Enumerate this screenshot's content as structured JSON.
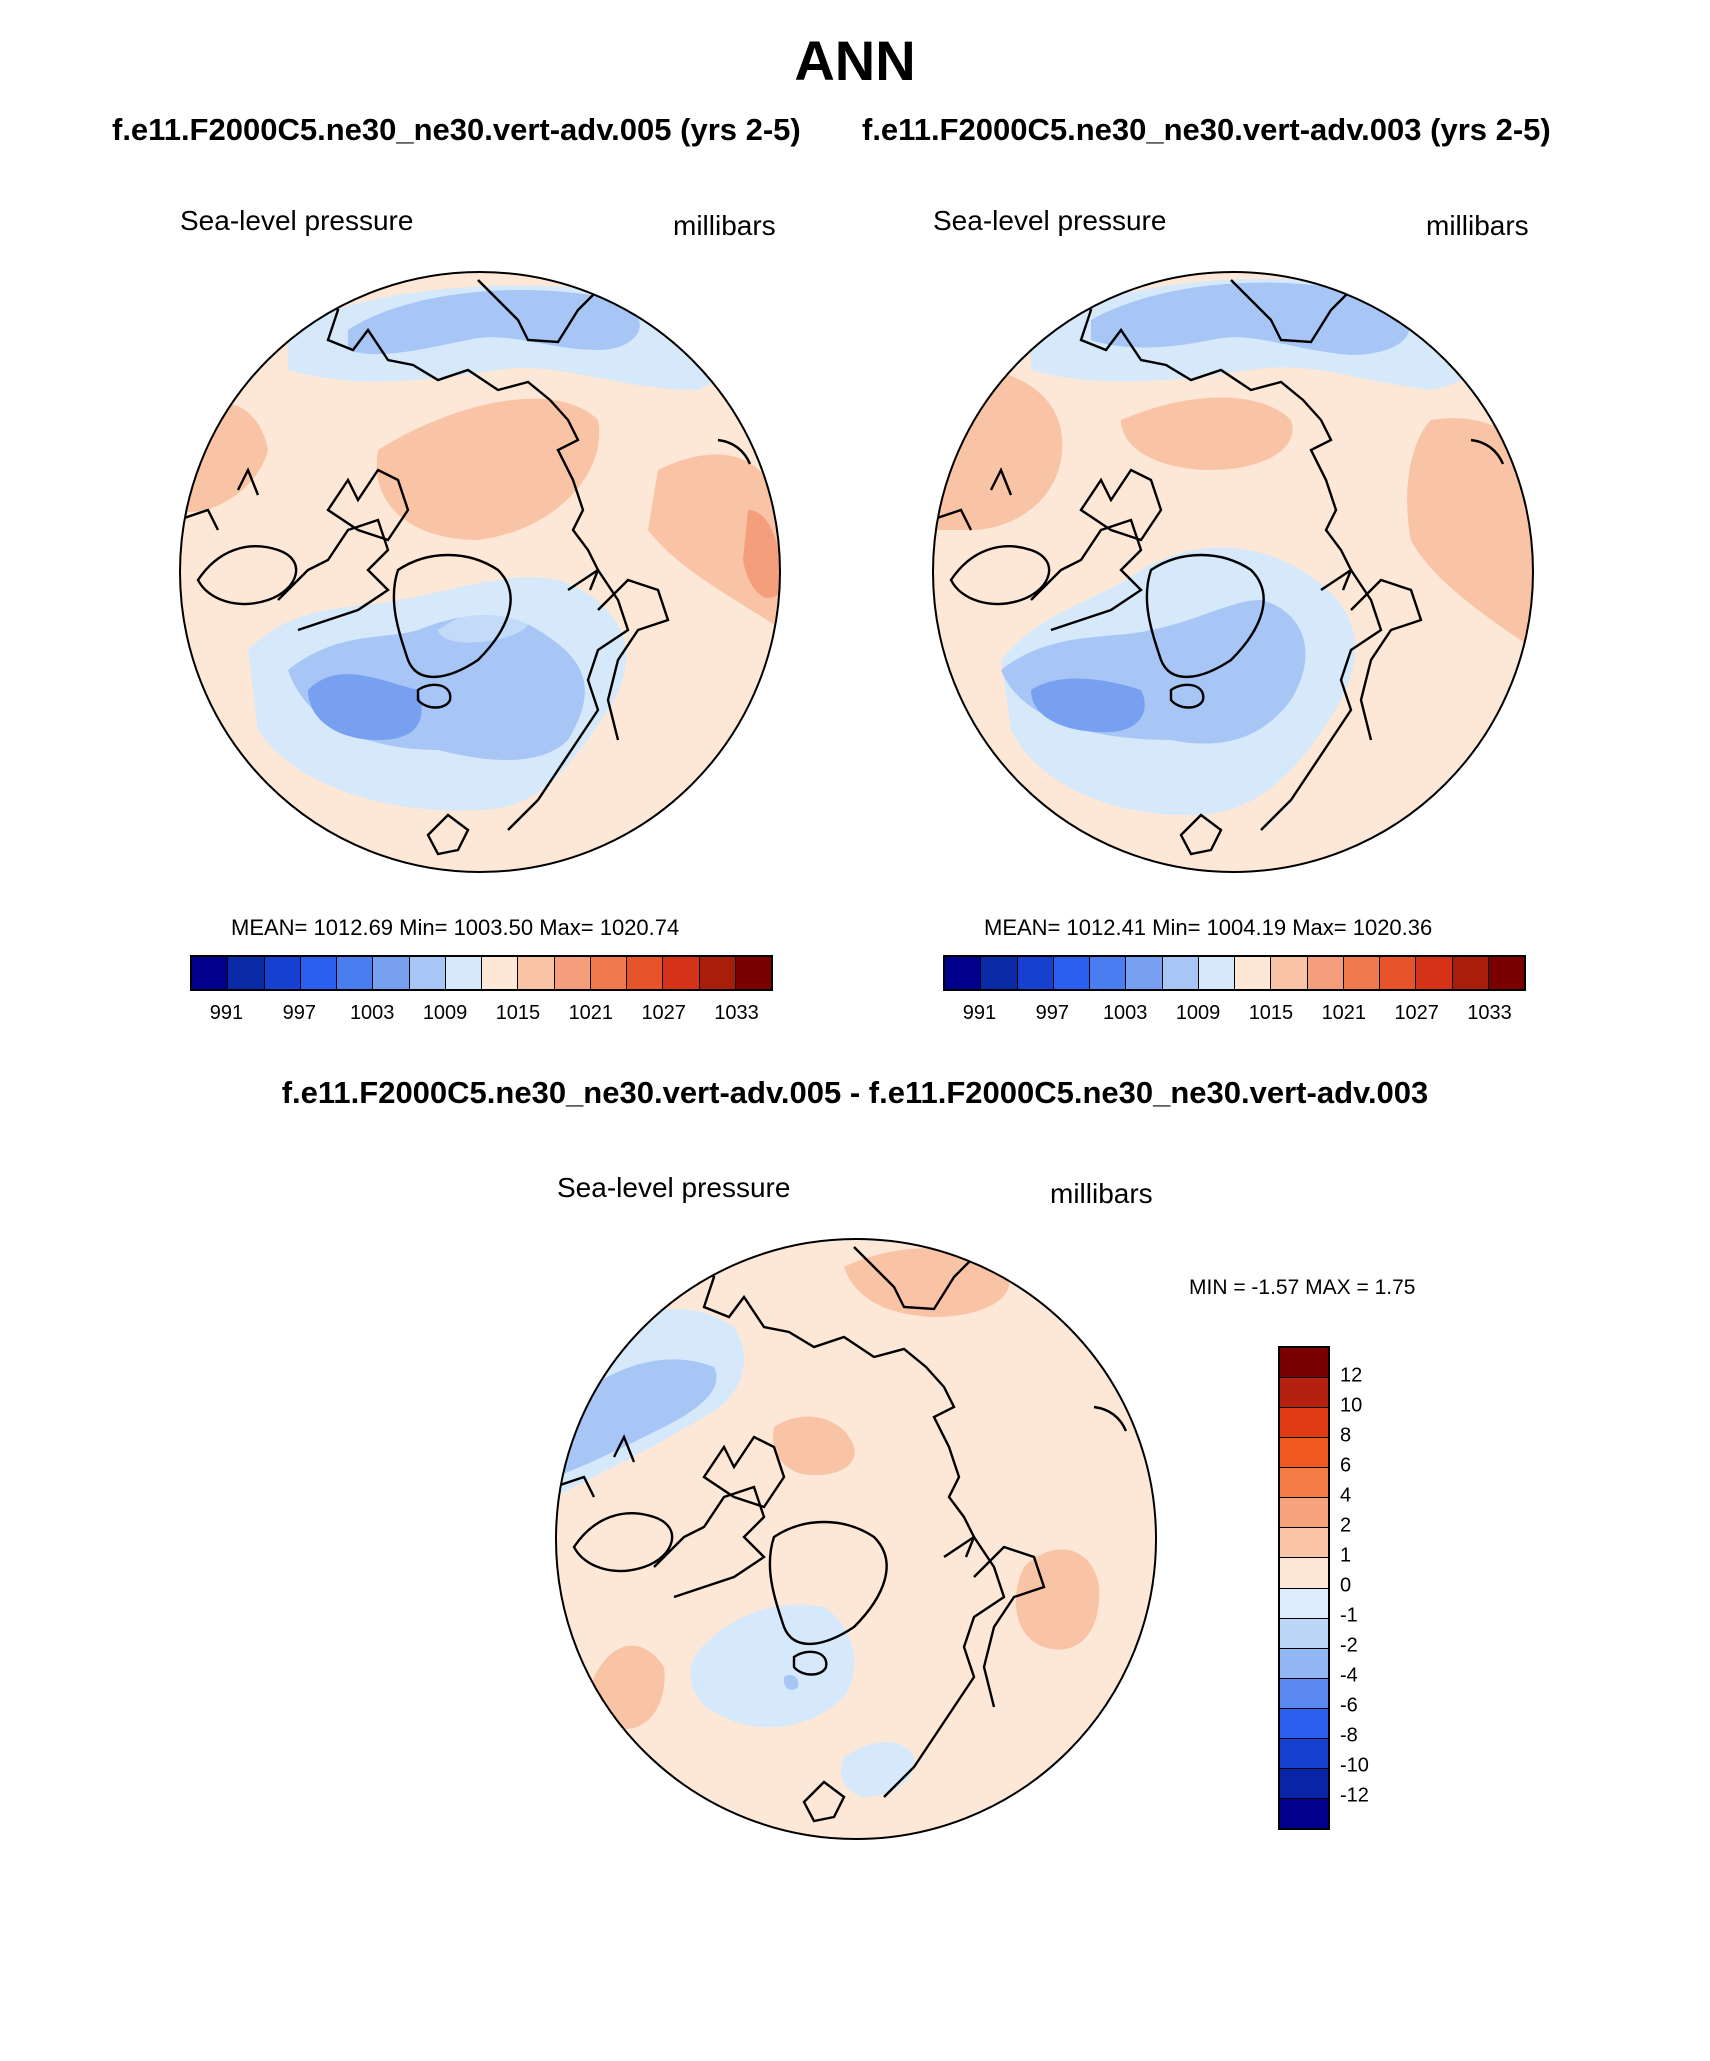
{
  "title": "ANN",
  "case1_title": "f.e11.F2000C5.ne30_ne30.vert-adv.005 (yrs 2-5)",
  "case2_title": "f.e11.F2000C5.ne30_ne30.vert-adv.003 (yrs 2-5)",
  "diff_title": "f.e11.F2000C5.ne30_ne30.vert-adv.005 - f.e11.F2000C5.ne30_ne30.vert-adv.003",
  "panels": [
    {
      "variable": "Sea-level pressure",
      "units": "millibars",
      "stats": "MEAN= 1012.69  Min= 1003.50  Max= 1020.74",
      "colorbar_ticks": [
        "991",
        "997",
        "1003",
        "1009",
        "1015",
        "1021",
        "1027",
        "1033"
      ]
    },
    {
      "variable": "Sea-level pressure",
      "units": "millibars",
      "stats": "MEAN= 1012.41  Min= 1004.19  Max= 1020.36",
      "colorbar_ticks": [
        "991",
        "997",
        "1003",
        "1009",
        "1015",
        "1021",
        "1027",
        "1033"
      ]
    }
  ],
  "diff_panel": {
    "variable": "Sea-level pressure",
    "units": "millibars",
    "stats": "MIN =  -1.57 MAX =   1.75",
    "colorbar_ticks": [
      "12",
      "10",
      "8",
      "6",
      "4",
      "2",
      "1",
      "0",
      "-1",
      "-2",
      "-4",
      "-6",
      "-8",
      "-10",
      "-12"
    ]
  },
  "colors": {
    "abs_colorbar": [
      "#00008c",
      "#0a2aa8",
      "#1540d0",
      "#2a5ff0",
      "#4a7ef0",
      "#78a0f0",
      "#a8c6f5",
      "#d6e9fb",
      "#fde7d6",
      "#f9c3a6",
      "#f59e7b",
      "#f07a4d",
      "#e8542a",
      "#d63218",
      "#a81e0a",
      "#7a0000"
    ],
    "diff_colorbar": [
      "#7a0000",
      "#b52010",
      "#df3a12",
      "#f05a20",
      "#f57c45",
      "#f8a27b",
      "#fbc6a7",
      "#fde7d6",
      "#dcecfb",
      "#bcd6f8",
      "#93b7f3",
      "#5b88ee",
      "#2c5ff0",
      "#1540d0",
      "#0a24a8",
      "#00008c"
    ]
  }
}
